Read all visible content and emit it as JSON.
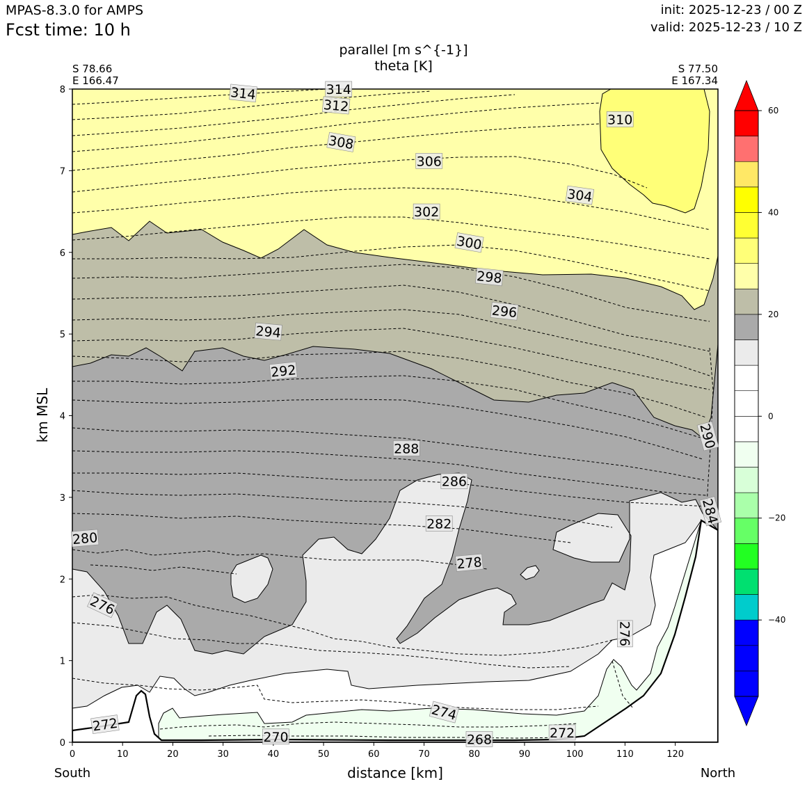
{
  "header": {
    "model": "MPAS-8.3.0 for AMPS",
    "fcst_time": "Fcst time:   10 h",
    "init": "init: 2025-12-23 / 00 Z",
    "valid": "valid: 2025-12-23 / 10 Z"
  },
  "colors": {
    "background": "#ffffff",
    "light_yellow": "#ffffaa",
    "yellow": "#ffff78",
    "khaki": "#bebea8",
    "dark_gray": "#aaaaaa",
    "light_gray": "#ebebeb",
    "pale_green": "#f0fff0"
  },
  "chart_data": {
    "type": "heatmap",
    "title": "parallel [m s^{-1}]",
    "subtitle": "theta [K]",
    "xlabel": "distance [km]",
    "ylabel": "km MSL",
    "xlim": [
      0,
      128.5
    ],
    "ylim": [
      0,
      8
    ],
    "x_ticks": [
      0,
      10,
      20,
      30,
      40,
      50,
      60,
      70,
      80,
      90,
      100,
      110,
      120
    ],
    "y_ticks": [
      0,
      1,
      2,
      3,
      4,
      5,
      6,
      7,
      8
    ],
    "left_endpoint": {
      "lat": "S 78.66",
      "lon": "E 166.47",
      "dir": "South"
    },
    "right_endpoint": {
      "lat": "S 77.50",
      "lon": "E 167.34",
      "dir": "North"
    },
    "colorbar": {
      "min": -55,
      "max": 60,
      "ticks": [
        60,
        40,
        20,
        0,
        -20,
        -40
      ],
      "tick_labels": [
        "60",
        "40",
        "20",
        "0",
        "−20",
        "−40"
      ],
      "bins": [
        {
          "from": -55,
          "to": -50,
          "color": "#0000ff"
        },
        {
          "from": -50,
          "to": -45,
          "color": "#0000ff"
        },
        {
          "from": -45,
          "to": -40,
          "color": "#0000ff"
        },
        {
          "from": -40,
          "to": -35,
          "color": "#00cccc"
        },
        {
          "from": -35,
          "to": -30,
          "color": "#00e070"
        },
        {
          "from": -30,
          "to": -25,
          "color": "#22ff22"
        },
        {
          "from": -25,
          "to": -20,
          "color": "#66ff66"
        },
        {
          "from": -20,
          "to": -15,
          "color": "#aaffaa"
        },
        {
          "from": -15,
          "to": -10,
          "color": "#d8ffd8"
        },
        {
          "from": -10,
          "to": -5,
          "color": "#f0fff0"
        },
        {
          "from": -5,
          "to": 0,
          "color": "#ffffff"
        },
        {
          "from": 0,
          "to": 5,
          "color": "#ffffff"
        },
        {
          "from": 5,
          "to": 10,
          "color": "#ffffff"
        },
        {
          "from": 10,
          "to": 15,
          "color": "#ebebeb"
        },
        {
          "from": 15,
          "to": 20,
          "color": "#aaaaaa"
        },
        {
          "from": 20,
          "to": 25,
          "color": "#bebea8"
        },
        {
          "from": 25,
          "to": 30,
          "color": "#ffffaa"
        },
        {
          "from": 30,
          "to": 35,
          "color": "#ffff78"
        },
        {
          "from": 35,
          "to": 40,
          "color": "#ffff33"
        },
        {
          "from": 40,
          "to": 45,
          "color": "#ffff00"
        },
        {
          "from": 45,
          "to": 50,
          "color": "#ffe866"
        },
        {
          "from": 50,
          "to": 55,
          "color": "#ff7070"
        },
        {
          "from": 55,
          "to": 60,
          "color": "#ff0000"
        }
      ],
      "over_color": "#ff0000",
      "under_color": "#0000ff"
    },
    "theta_labels": [
      {
        "text": "314",
        "x": 34,
        "y": 7.95,
        "rot": 6
      },
      {
        "text": "314",
        "x": 53,
        "y": 8.0,
        "rot": 0
      },
      {
        "text": "312",
        "x": 52.5,
        "y": 7.8,
        "rot": 5
      },
      {
        "text": "310",
        "x": 109,
        "y": 7.63,
        "rot": 0
      },
      {
        "text": "308",
        "x": 53.5,
        "y": 7.35,
        "rot": 10
      },
      {
        "text": "306",
        "x": 71,
        "y": 7.12,
        "rot": 0
      },
      {
        "text": "304",
        "x": 101,
        "y": 6.7,
        "rot": 8
      },
      {
        "text": "302",
        "x": 70.5,
        "y": 6.5,
        "rot": 0
      },
      {
        "text": "300",
        "x": 79,
        "y": 6.12,
        "rot": 10
      },
      {
        "text": "298",
        "x": 83,
        "y": 5.7,
        "rot": 6
      },
      {
        "text": "296",
        "x": 86,
        "y": 5.28,
        "rot": 6
      },
      {
        "text": "294",
        "x": 39,
        "y": 5.03,
        "rot": 5
      },
      {
        "text": "292",
        "x": 42,
        "y": 4.55,
        "rot": -6
      },
      {
        "text": "290",
        "x": 126.5,
        "y": 3.75,
        "rot": 75
      },
      {
        "text": "288",
        "x": 66.5,
        "y": 3.6,
        "rot": 0
      },
      {
        "text": "286",
        "x": 76,
        "y": 3.2,
        "rot": 0
      },
      {
        "text": "284",
        "x": 127,
        "y": 2.83,
        "rot": 75
      },
      {
        "text": "282",
        "x": 73,
        "y": 2.68,
        "rot": 0
      },
      {
        "text": "280",
        "x": 2.5,
        "y": 2.5,
        "rot": -5
      },
      {
        "text": "278",
        "x": 79,
        "y": 2.2,
        "rot": -5
      },
      {
        "text": "276",
        "x": 6,
        "y": 1.68,
        "rot": 25
      },
      {
        "text": "276",
        "x": 110,
        "y": 1.33,
        "rot": 90
      },
      {
        "text": "274",
        "x": 74,
        "y": 0.37,
        "rot": 15
      },
      {
        "text": "272",
        "x": 6.5,
        "y": 0.22,
        "rot": -8
      },
      {
        "text": "272",
        "x": 97.5,
        "y": 0.12,
        "rot": 0
      },
      {
        "text": "270",
        "x": 40.5,
        "y": 0.07,
        "rot": 0
      },
      {
        "text": "268",
        "x": 81,
        "y": 0.04,
        "rot": 0
      }
    ]
  }
}
